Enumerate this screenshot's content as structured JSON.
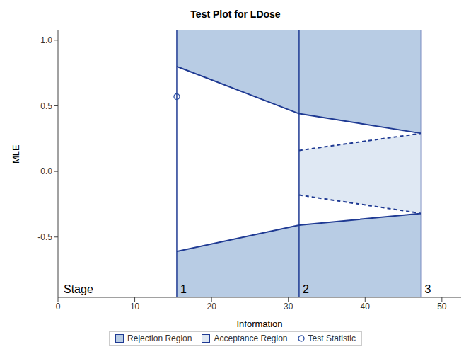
{
  "chart_data": {
    "type": "area",
    "title": "Test Plot for LDose",
    "x_label": "Information",
    "y_label": "MLE",
    "xlim": [
      0,
      52.5
    ],
    "xticks": [
      0,
      10,
      20,
      30,
      40,
      50
    ],
    "ylim": [
      -0.96,
      1.08
    ],
    "yticks": [
      {
        "value": -0.5,
        "label": "-0.5"
      },
      {
        "value": 0,
        "label": "0.0"
      },
      {
        "value": 0.5,
        "label": "0.5"
      },
      {
        "value": 1,
        "label": "1.0"
      }
    ],
    "stage_label": "Stage",
    "stages": [
      1,
      2,
      3
    ],
    "x": [
      15.47,
      31.4,
      47.3
    ],
    "series": [
      {
        "name": "Rejection Region",
        "type": "area",
        "color": "#b8cce4",
        "line_style": "solid",
        "upper_boundary": [
          0.8,
          0.44,
          0.29
        ],
        "lower_boundary": [
          -0.61,
          -0.41,
          -0.32
        ]
      },
      {
        "name": "Acceptance Region",
        "type": "area",
        "color": "#dfe8f3",
        "line_style": "dashed",
        "upper_boundary": [
          null,
          0.16,
          0.29
        ],
        "lower_boundary": [
          null,
          -0.18,
          -0.32
        ]
      },
      {
        "name": "Test Statistic",
        "type": "scatter",
        "marker": "circle",
        "color": "#2a4ea3",
        "values": [
          0.57,
          null,
          null
        ]
      }
    ]
  }
}
